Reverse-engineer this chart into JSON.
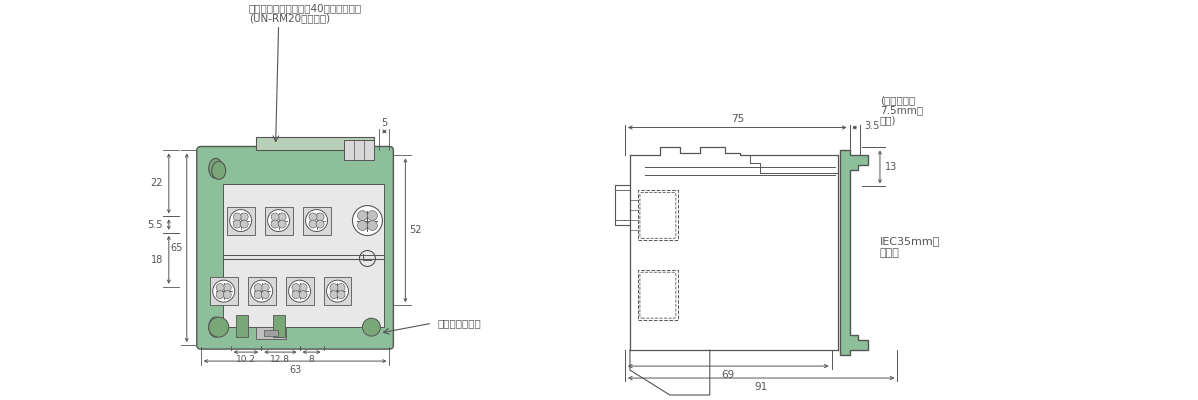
{
  "bg_color": "#ffffff",
  "line_color": "#555555",
  "green_fill": "#8dc09a",
  "dim_color": "#555555",
  "annotations": {
    "top_label": "サーマルリレー取付用40ねじ（２本）",
    "top_label2": "(UN-RM20の付属品)",
    "reset_label": "リセットパー・",
    "iec_label": "IEC35mm幅",
    "iec_label2": "レール",
    "rail_label": "(レール厚さ",
    "rail_label2": "7.5mmの",
    "rail_label3": "場合)"
  },
  "dims_front": {
    "width_total": "63",
    "d1": "10.2",
    "d2": "12.8",
    "d3": "8",
    "height_total": "65",
    "h1": "22",
    "h2": "5.5",
    "h3": "18",
    "top_dim": "5",
    "right_dim": "52"
  },
  "dims_side": {
    "width1": "75",
    "width2": "3.5",
    "width3": "69",
    "width4": "91",
    "height1": "13"
  }
}
